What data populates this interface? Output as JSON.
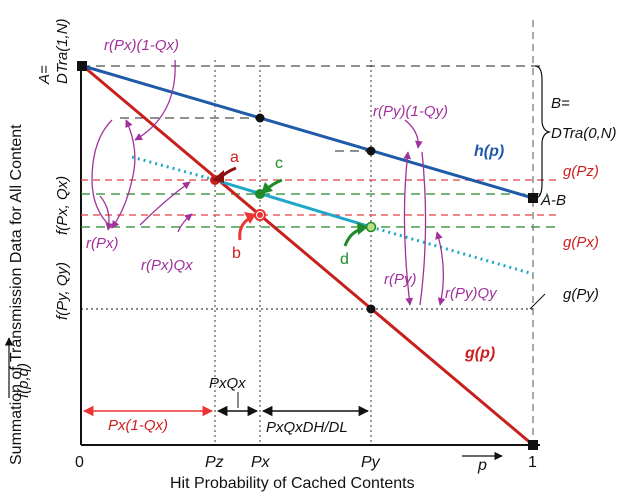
{
  "figure": {
    "axis": {
      "ylabel": "Summation of Transmission Data for All Content",
      "xlabel": "Hit Probability of Cached Contents",
      "x_origin": "0",
      "x_end": "1",
      "x_ticks": [
        "Pz",
        "Px",
        "Py"
      ],
      "p_vec": "p",
      "f_vec": "f(p,q)"
    },
    "left_labels": {
      "a_eq": "A=",
      "dtra_1n": "DTra(1,N)",
      "f_px_qx": "f(Px, Qx)",
      "f_py_qy": "f(Py, Qy)"
    },
    "right_labels": {
      "b_eq": "B=",
      "dtra_0n": "DTra(0,N)",
      "a_minus_b": "A-B",
      "g_pz": "g(Pz)",
      "g_px": "g(Px)",
      "g_py": "g(Py)",
      "h_p": "h(p)",
      "g_p": "g(p)"
    },
    "magenta_labels": {
      "r_px_1mqx": "r(Px)(1-Qx)",
      "r_px": "r(Px)",
      "r_px_qx": "r(Px)Qx",
      "r_py_1mqy": "r(Py)(1-Qy)",
      "r_py": "r(Py)",
      "r_py_qy": "r(Py)Qy"
    },
    "points": {
      "a": "a",
      "b": "b",
      "c": "c",
      "d": "d"
    },
    "bottom_labels": {
      "px_1mqx": "Px(1-Qx)",
      "px_qx": "PxQx",
      "px_qx_dh_dl": "PxQxDH/DL"
    },
    "colors": {
      "g_line": "#c8201d",
      "h_line": "#1f5aa8",
      "cyan_line": "#1fa7c9",
      "magenta": "#a0329a",
      "green": "#1f8a2a",
      "red_dash": "#e04040"
    }
  }
}
